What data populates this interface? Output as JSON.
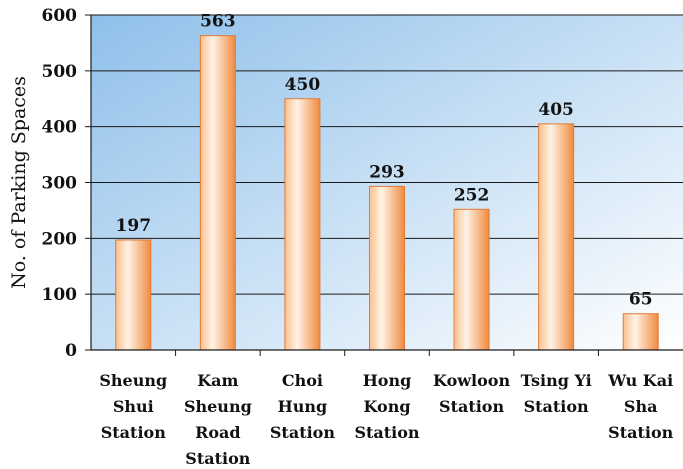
{
  "chart_data": {
    "type": "bar",
    "categories": [
      [
        "Sheung",
        "Shui",
        "Station"
      ],
      [
        "Kam",
        "Sheung",
        "Road",
        "Station"
      ],
      [
        "Choi",
        "Hung",
        "Station"
      ],
      [
        "Hong",
        "Kong",
        "Station"
      ],
      [
        "Kowloon",
        "Station"
      ],
      [
        "Tsing Yi",
        "Station"
      ],
      [
        "Wu Kai",
        "Sha",
        "Station"
      ]
    ],
    "values": [
      197,
      563,
      450,
      293,
      252,
      405,
      65
    ],
    "data_labels": [
      "197",
      "563",
      "450",
      "293",
      "252",
      "405",
      "65"
    ],
    "title": "",
    "xlabel": "",
    "ylabel": "No. of Parking Spaces",
    "ylim": [
      0,
      600
    ],
    "yticks": [
      0,
      100,
      200,
      300,
      400,
      500,
      600
    ],
    "grid": true,
    "legend": "none",
    "colors": {
      "bar_edge": "#e07b39",
      "bar_light": "#fff3e6",
      "bar_mid": "#fbc08e",
      "bar_dark": "#f08a3e",
      "bg_top_left": "#8fc0ea",
      "bg_bottom_right": "#ffffff",
      "grid": "#1a1a1a",
      "axis": "#1a1a1a"
    }
  }
}
